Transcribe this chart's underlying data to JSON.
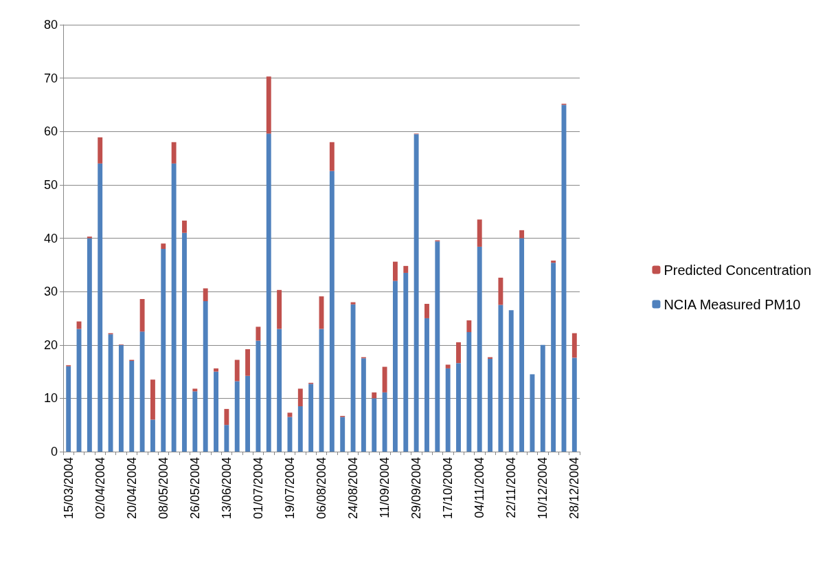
{
  "chart_data": {
    "type": "bar",
    "stacked": true,
    "categories": [
      "15/03/2004",
      null,
      null,
      "02/04/2004",
      null,
      null,
      "20/04/2004",
      null,
      null,
      "08/05/2004",
      null,
      null,
      "26/05/2004",
      null,
      null,
      "13/06/2004",
      null,
      null,
      "01/07/2004",
      null,
      null,
      "19/07/2004",
      null,
      null,
      "06/08/2004",
      null,
      null,
      "24/08/2004",
      null,
      null,
      "11/09/2004",
      null,
      null,
      "29/09/2004",
      null,
      null,
      "17/10/2004",
      null,
      null,
      "04/11/2004",
      null,
      null,
      "22/11/2004",
      null,
      null,
      "10/12/2004",
      null,
      null,
      "28/12/2004"
    ],
    "series": [
      {
        "name": "NCIA Measured PM10",
        "color": "#4f81bd",
        "values": [
          16,
          23,
          40,
          54,
          22,
          20,
          17,
          22.5,
          6,
          38,
          54,
          41,
          11.3,
          28.2,
          15,
          5,
          13.2,
          14.2,
          20.8,
          59.6,
          23,
          6.5,
          8.5,
          12.7,
          23,
          52.6,
          6.5,
          27.6,
          17.5,
          10,
          11.1,
          32,
          33.5,
          59.5,
          25,
          39.4,
          15.6,
          16.6,
          22.4,
          38.4,
          17.4,
          27.5,
          26.5,
          40,
          14.5,
          20,
          35.4,
          65,
          17.6
        ]
      },
      {
        "name": "Predicted Concentration",
        "color": "#c0504d",
        "values": [
          0.2,
          1.4,
          0.3,
          4.9,
          0.2,
          0.1,
          0.2,
          6.1,
          7.5,
          1,
          4,
          2.3,
          0.5,
          2.4,
          0.6,
          3,
          4,
          5,
          2.6,
          10.7,
          7.3,
          0.8,
          3.3,
          0.2,
          6.1,
          5.4,
          0.2,
          0.4,
          0.2,
          1.1,
          4.8,
          3.6,
          1.3,
          0.1,
          2.7,
          0.2,
          0.7,
          3.9,
          2.2,
          5.1,
          0.3,
          5.1,
          0,
          1.5,
          0,
          0,
          0.4,
          0.2,
          4.6
        ]
      }
    ],
    "ylim": [
      0,
      80
    ],
    "yticks": [
      0,
      10,
      20,
      30,
      40,
      50,
      60,
      70,
      80
    ],
    "grid": "y",
    "legend": "right"
  }
}
